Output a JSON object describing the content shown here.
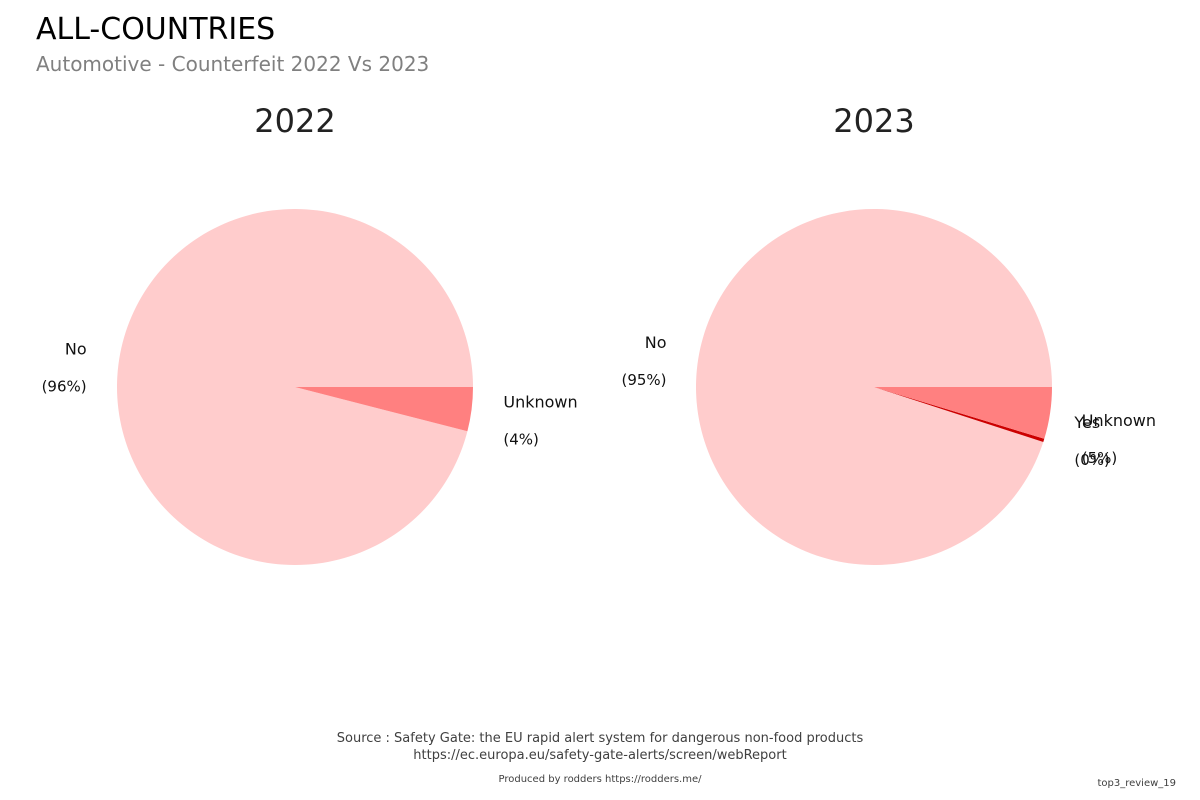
{
  "header": {
    "title": "ALL-COUNTRIES",
    "subtitle": "Automotive - Counterfeit 2022 Vs 2023"
  },
  "chart_data": [
    {
      "type": "pie",
      "title": "2022",
      "slices": [
        {
          "label": "No",
          "pct_label": "(96%)",
          "value": 96,
          "color": "#ffcccc"
        },
        {
          "label": "Unknown",
          "pct_label": "(4%)",
          "value": 4,
          "color": "#ff8080"
        }
      ]
    },
    {
      "type": "pie",
      "title": "2023",
      "slices": [
        {
          "label": "No",
          "pct_label": "(95%)",
          "value": 95,
          "color": "#ffcccc"
        },
        {
          "label": "Yes",
          "pct_label": "(0%)",
          "value": 0.3,
          "color": "#cc0000"
        },
        {
          "label": "Unknown",
          "pct_label": "(5%)",
          "value": 4.7,
          "color": "#ff8080"
        }
      ]
    }
  ],
  "footer": {
    "source_line1": "Source : Safety Gate: the EU rapid alert system for dangerous non-food products",
    "source_line2": "https://ec.europa.eu/safety-gate-alerts/screen/webReport",
    "produced_by": "Produced by rodders https://rodders.me/",
    "tag": "top3_review_19"
  }
}
